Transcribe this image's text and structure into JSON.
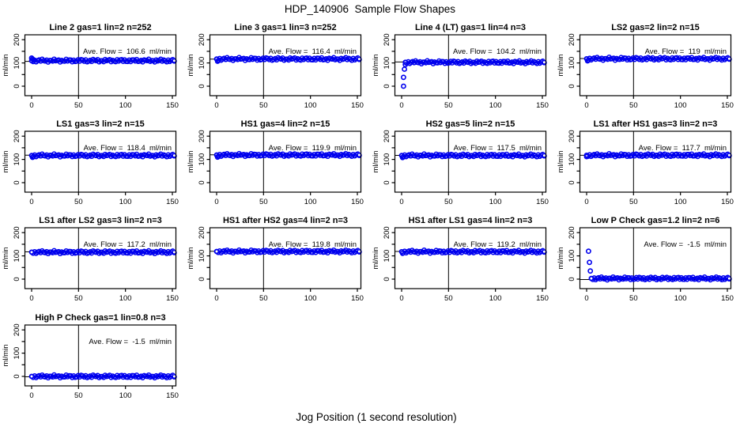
{
  "title": "HDP_140906  Sample Flow Shapes",
  "xlabel": "Jog Position (1 second resolution)",
  "colors": {
    "points": "#0000EE",
    "axis": "#000000",
    "background": "#ffffff"
  },
  "chart_data": {
    "type": "scatter",
    "grid_layout": {
      "cols": 4,
      "rows": 4,
      "panel_count": 13
    },
    "ylabel": "ml/min",
    "x_ticks": [
      0,
      50,
      100,
      150
    ],
    "y_ticks": [
      0,
      50,
      100,
      150,
      200
    ],
    "y_tick_labels": [
      0,
      100,
      200
    ],
    "xlim": [
      -7,
      154
    ],
    "ylim": [
      -41,
      222
    ],
    "vline_x": 50,
    "legend": "none",
    "plots": [
      {
        "title": "Line 2 gas=1 lin=2 n=252",
        "ave_flow": 106.6,
        "ave_label": "Ave. Flow =  106.6  ml/min",
        "band_y": 110,
        "band_x": [
          0,
          152
        ],
        "lead_points": [
          [
            0,
            121
          ],
          [
            1,
            117
          ],
          [
            2,
            113
          ]
        ]
      },
      {
        "title": "Line 3 gas=1 lin=3 n=252",
        "ave_flow": 116.4,
        "ave_label": "Ave. Flow =  116.4  ml/min",
        "band_y": 117,
        "band_x": [
          0,
          152
        ],
        "lead_points": [
          [
            1,
            107
          ],
          [
            2,
            111
          ]
        ]
      },
      {
        "title": "Line 4 (LT) gas=1 lin=4 n=3",
        "ave_flow": 104.2,
        "ave_label": "Ave. Flow =  104.2  ml/min",
        "band_y": 103,
        "band_x": [
          4,
          152
        ],
        "lead_points": [
          [
            2,
            0
          ],
          [
            2,
            38
          ],
          [
            3,
            73
          ],
          [
            4,
            93
          ]
        ]
      },
      {
        "title": "LS2 gas=2 lin=2 n=15",
        "ave_flow": 119,
        "ave_label": "Ave. Flow =  119  ml/min",
        "band_y": 118,
        "band_x": [
          0,
          152
        ],
        "lead_points": [
          [
            1,
            109
          ],
          [
            2,
            113
          ]
        ]
      },
      {
        "title": "LS1 gas=3 lin=2 n=15",
        "ave_flow": 118.4,
        "ave_label": "Ave. Flow =  118.4  ml/min",
        "band_y": 117,
        "band_x": [
          0,
          152
        ],
        "lead_points": [
          [
            1,
            109
          ],
          [
            2,
            113
          ]
        ]
      },
      {
        "title": "HS1 gas=4 lin=2 n=15",
        "ave_flow": 119.9,
        "ave_label": "Ave. Flow =  119.9  ml/min",
        "band_y": 119,
        "band_x": [
          0,
          152
        ],
        "lead_points": [
          [
            1,
            110
          ],
          [
            2,
            114
          ]
        ]
      },
      {
        "title": "HS2 gas=5 lin=2 n=15",
        "ave_flow": 117.5,
        "ave_label": "Ave. Flow =  117.5  ml/min",
        "band_y": 117,
        "band_x": [
          0,
          152
        ],
        "lead_points": [
          [
            1,
            108
          ],
          [
            2,
            112
          ]
        ]
      },
      {
        "title": "LS1 after HS1 gas=3 lin=2 n=3",
        "ave_flow": 117.7,
        "ave_label": "Ave. Flow =  117.7  ml/min",
        "band_y": 118,
        "band_x": [
          0,
          152
        ],
        "lead_points": [
          [
            0,
            112
          ]
        ]
      },
      {
        "title": "LS1 after LS2 gas=3 lin=2 n=3",
        "ave_flow": 117.2,
        "ave_label": "Ave. Flow =  117.2  ml/min",
        "band_y": 116,
        "band_x": [
          0,
          152
        ],
        "lead_points": []
      },
      {
        "title": "HS1 after HS2 gas=4 lin=2 n=3",
        "ave_flow": 119.8,
        "ave_label": "Ave. Flow =  119.8  ml/min",
        "band_y": 119,
        "band_x": [
          0,
          152
        ],
        "lead_points": []
      },
      {
        "title": "HS1 after LS1 gas=4 lin=2 n=3",
        "ave_flow": 119.2,
        "ave_label": "Ave. Flow =  119.2  ml/min",
        "band_y": 118,
        "band_x": [
          0,
          152
        ],
        "lead_points": [
          [
            1,
            111
          ]
        ]
      },
      {
        "title": "Low P Check gas=1.2 lin=2 n=6",
        "ave_flow": -1.5,
        "ave_label": "Ave. Flow =  -1.5  ml/min",
        "band_y": 3,
        "band_x": [
          5,
          152
        ],
        "lead_points": [
          [
            2,
            120
          ],
          [
            3,
            72
          ],
          [
            4,
            35
          ]
        ]
      },
      {
        "title": "High P Check gas=1 lin=0.8 n=3",
        "ave_flow": -1.5,
        "ave_label": "Ave. Flow =  -1.5  ml/min",
        "band_y": 0,
        "band_x": [
          0,
          152
        ],
        "lead_points": []
      }
    ]
  }
}
